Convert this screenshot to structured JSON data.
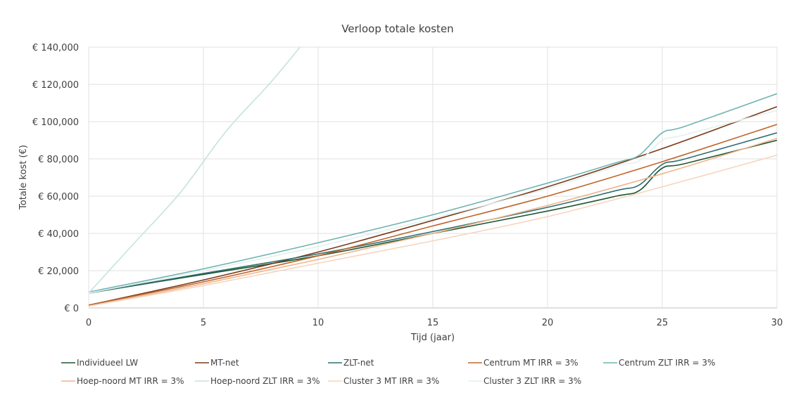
{
  "chart_data": {
    "type": "line",
    "title": "Verloop totale kosten",
    "xlabel": "Tijd (jaar)",
    "ylabel": "Totale kost (€)",
    "xlim": [
      0,
      30
    ],
    "ylim": [
      0,
      140000
    ],
    "xticks": [
      "0",
      "5",
      "10",
      "15",
      "20",
      "25",
      "30"
    ],
    "yticks": [
      "€ 0",
      "€ 20,000",
      "€ 40,000",
      "€ 60,000",
      "€ 80,000",
      "€ 100,000",
      "€ 120,000",
      "€ 140,000"
    ],
    "grid": true,
    "legend_position": "bottom",
    "series": [
      {
        "name": "Individueel LW",
        "color": "#1e5631",
        "x": [
          0,
          5,
          10,
          15,
          20,
          23,
          24,
          25,
          26,
          30
        ],
        "y": [
          8000,
          18000,
          28000,
          40000,
          52000,
          60000,
          63000,
          75000,
          77500,
          90000
        ]
      },
      {
        "name": "MT-net",
        "color": "#7a3b1a",
        "x": [
          0,
          5,
          10,
          15,
          20,
          25,
          30
        ],
        "y": [
          1500,
          15000,
          30000,
          47000,
          65000,
          85500,
          108000
        ]
      },
      {
        "name": "ZLT-net",
        "color": "#2e6e73",
        "x": [
          0,
          5,
          10,
          15,
          20,
          23,
          24,
          25,
          26,
          30
        ],
        "y": [
          8000,
          18500,
          29000,
          41000,
          54000,
          63000,
          66000,
          77000,
          80000,
          94000
        ]
      },
      {
        "name": "Centrum MT IRR = 3%",
        "color": "#c0662a",
        "x": [
          0,
          5,
          10,
          15,
          20,
          25,
          30
        ],
        "y": [
          1500,
          14000,
          28000,
          44000,
          60000,
          78500,
          98500
        ]
      },
      {
        "name": "Centrum ZLT IRR = 3%",
        "color": "#6fb3b0",
        "x": [
          0,
          5,
          10,
          15,
          20,
          23,
          24,
          25,
          26,
          30
        ],
        "y": [
          8500,
          21000,
          35000,
          50000,
          67000,
          78000,
          82000,
          94000,
          97500,
          115000
        ]
      },
      {
        "name": "Hoep-noord MT IRR = 3%",
        "color": "#f0b48a",
        "x": [
          0,
          5,
          10,
          15,
          20,
          25,
          30
        ],
        "y": [
          1000,
          13000,
          26000,
          40000,
          55000,
          72000,
          91000
        ]
      },
      {
        "name": "Hoep-noord ZLT IRR = 3%",
        "color": "#c5e3e0",
        "x": [
          0,
          2,
          4,
          6,
          8,
          10
        ],
        "y": [
          8000,
          35000,
          62000,
          95000,
          122000,
          152000
        ]
      },
      {
        "name": "Cluster 3 MT IRR = 3%",
        "color": "#f6d5bf",
        "x": [
          0,
          5,
          10,
          15,
          20,
          25,
          30
        ],
        "y": [
          1000,
          12000,
          24000,
          36000,
          49000,
          65000,
          82000
        ]
      },
      {
        "name": "Cluster 3 ZLT IRR = 3%",
        "color": "#e4f1f0",
        "x": [
          0,
          5,
          10,
          15,
          20,
          23,
          24,
          25,
          26,
          30
        ],
        "y": [
          8000,
          20000,
          33000,
          48000,
          64000,
          76000,
          79000,
          90000,
          93000,
          106000
        ]
      }
    ]
  }
}
